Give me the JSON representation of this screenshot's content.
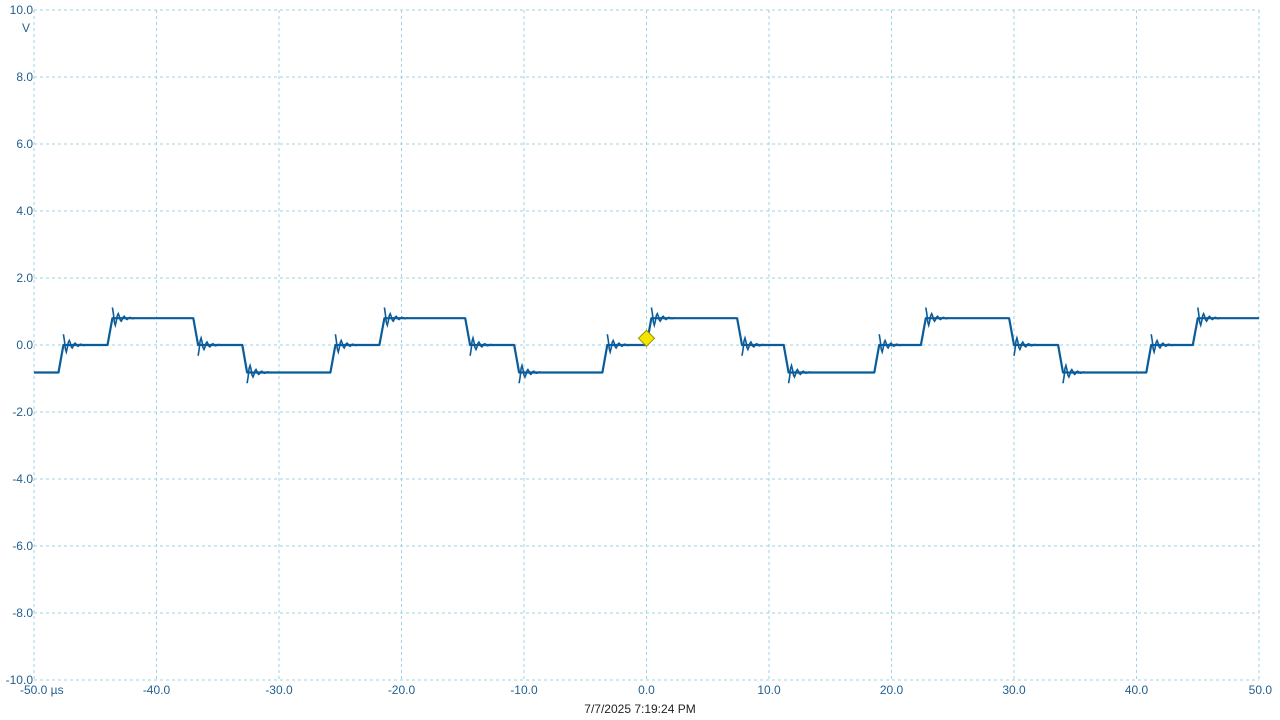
{
  "timestamp": "7/7/2025 7:19:24 PM",
  "chart_data": {
    "type": "line",
    "title": "",
    "xlabel": "",
    "ylabel": "",
    "x_unit": "µs",
    "y_unit": "V",
    "xlim": [
      -50,
      50
    ],
    "ylim": [
      -10,
      10
    ],
    "grid": true,
    "legend": "none",
    "x_ticks": [
      -50,
      -40,
      -30,
      -20,
      -10,
      0,
      10,
      20,
      30,
      40,
      50
    ],
    "x_tick_labels": [
      "-50.0 µs",
      "-40.0",
      "-30.0",
      "-20.0",
      "-10.0",
      "0.0",
      "10.0",
      "20.0",
      "30.0",
      "40.0",
      "50.0"
    ],
    "y_ticks": [
      10,
      8,
      6,
      4,
      2,
      0,
      -2,
      -4,
      -6,
      -8,
      -10
    ],
    "y_tick_labels": [
      "10.0",
      "8.0",
      "6.0",
      "4.0",
      "2.0",
      "0.0",
      "-2.0",
      "-4.0",
      "-6.0",
      "-8.0",
      "-10.0"
    ],
    "y_unit_label": "V",
    "trigger_marker": {
      "x": 0.0,
      "y": 0.2,
      "color": "#f2e600"
    },
    "colors": {
      "trace": "#0a5c9a",
      "grid": "#9fd3e6",
      "axis_text": "#1f5f8f"
    },
    "series": [
      {
        "values": [
          [
            -50.0,
            -0.82
          ],
          [
            -48.0,
            -0.82
          ],
          [
            -47.6,
            0.0
          ],
          [
            -44.0,
            0.0
          ],
          [
            -43.6,
            0.8
          ],
          [
            -37.0,
            0.8
          ],
          [
            -36.6,
            0.0
          ],
          [
            -33.0,
            0.0
          ],
          [
            -32.6,
            -0.82
          ],
          [
            -25.8,
            -0.82
          ],
          [
            -25.4,
            0.0
          ],
          [
            -21.8,
            0.0
          ],
          [
            -21.4,
            0.8
          ],
          [
            -14.8,
            0.8
          ],
          [
            -14.4,
            0.0
          ],
          [
            -10.8,
            0.0
          ],
          [
            -10.4,
            -0.82
          ],
          [
            -3.6,
            -0.82
          ],
          [
            -3.2,
            0.0
          ],
          [
            0.0,
            0.0
          ],
          [
            0.4,
            0.8
          ],
          [
            7.4,
            0.8
          ],
          [
            7.8,
            0.0
          ],
          [
            11.2,
            0.0
          ],
          [
            11.6,
            -0.82
          ],
          [
            18.6,
            -0.82
          ],
          [
            19.0,
            0.0
          ],
          [
            22.4,
            0.0
          ],
          [
            22.8,
            0.8
          ],
          [
            29.6,
            0.8
          ],
          [
            30.0,
            0.0
          ],
          [
            33.6,
            0.0
          ],
          [
            34.0,
            -0.82
          ],
          [
            40.8,
            -0.82
          ],
          [
            41.2,
            0.0
          ],
          [
            44.6,
            0.0
          ],
          [
            45.0,
            0.8
          ],
          [
            50.0,
            0.8
          ]
        ]
      }
    ]
  }
}
